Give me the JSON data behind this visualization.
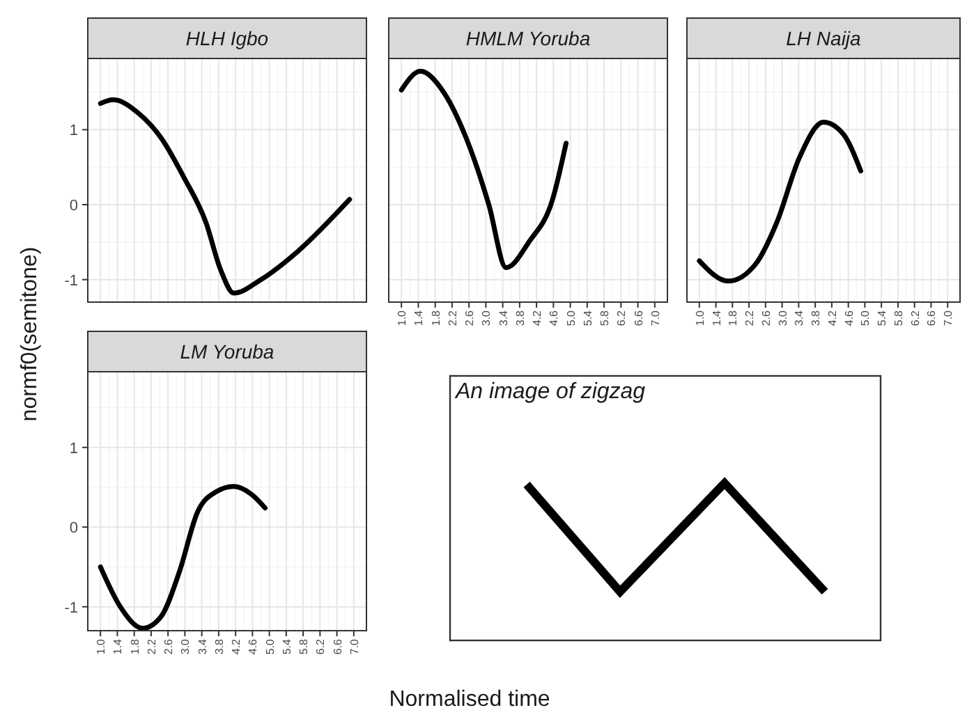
{
  "chart_data": [
    {
      "type": "line",
      "title": "HLH Igbo",
      "x": [
        1.0,
        1.3,
        1.9,
        2.45,
        2.97,
        3.5,
        3.84,
        4.16,
        4.8,
        5.68,
        6.9
      ],
      "series": [
        {
          "color": "#000000",
          "values": [
            1.35,
            1.4,
            1.22,
            0.88,
            0.37,
            -0.24,
            -0.86,
            -1.18,
            -1.0,
            -0.62,
            0.07
          ]
        }
      ],
      "xlim": [
        0.7,
        7.3
      ],
      "ylim": [
        -1.3,
        1.95
      ],
      "xticks": [
        1,
        1.4,
        1.8,
        2.2,
        2.6,
        3,
        3.4,
        3.8,
        4.2,
        4.6,
        5,
        5.4,
        5.8,
        6.2,
        6.6,
        7
      ],
      "yticks": [
        -1,
        0,
        1
      ],
      "grid": true,
      "tick_labels": "y"
    },
    {
      "type": "line",
      "title": "HMLM Yoruba",
      "x": [
        1.0,
        1.45,
        2.0,
        2.54,
        3.07,
        3.48,
        4.03,
        4.58,
        4.9
      ],
      "series": [
        {
          "color": "#000000",
          "values": [
            1.53,
            1.78,
            1.5,
            0.88,
            0,
            -0.84,
            -0.49,
            0.07,
            0.82
          ]
        }
      ],
      "xlim": [
        0.7,
        7.3
      ],
      "ylim": [
        -1.3,
        1.95
      ],
      "xticks": [
        {
          "value": 1,
          "label": "1.0"
        },
        1.4,
        1.8,
        2.2,
        2.6,
        {
          "value": 3,
          "label": "3.0"
        },
        3.4,
        3.8,
        4.2,
        4.6,
        {
          "value": 5,
          "label": "5.0"
        },
        5.4,
        5.8,
        6.2,
        6.6,
        {
          "value": 7,
          "label": "7.0"
        }
      ],
      "yticks": [
        -1,
        0,
        1
      ],
      "grid": true,
      "tick_labels": "x"
    },
    {
      "type": "line",
      "title": "LH Naija",
      "x": [
        1.0,
        1.7,
        2.35,
        2.87,
        3.42,
        4.0,
        4.48,
        4.9
      ],
      "series": [
        {
          "color": "#000000",
          "values": [
            -0.75,
            -1.02,
            -0.8,
            -0.24,
            0.63,
            1.1,
            0.94,
            0.45
          ]
        }
      ],
      "xlim": [
        0.7,
        7.3
      ],
      "ylim": [
        -1.3,
        1.95
      ],
      "xticks": [
        {
          "value": 1,
          "label": "1.0"
        },
        1.4,
        1.8,
        2.2,
        2.6,
        {
          "value": 3,
          "label": "3.0"
        },
        3.4,
        3.8,
        4.2,
        4.6,
        {
          "value": 5,
          "label": "5.0"
        },
        5.4,
        5.8,
        6.2,
        6.6,
        {
          "value": 7,
          "label": "7.0"
        }
      ],
      "yticks": [
        -1,
        0,
        1
      ],
      "grid": true,
      "tick_labels": "x"
    },
    {
      "type": "line",
      "title": "LM Yoruba",
      "xlabel": "Normalised time",
      "ylabel": "normf0(semitone)",
      "x": [
        1.0,
        1.47,
        2.0,
        2.44,
        2.87,
        3.3,
        3.73,
        4.16,
        4.58,
        4.9
      ],
      "series": [
        {
          "color": "#000000",
          "values": [
            -0.5,
            -1.0,
            -1.27,
            -1.12,
            -0.56,
            0.19,
            0.44,
            0.51,
            0.41,
            0.24
          ]
        }
      ],
      "xlim": [
        0.7,
        7.3
      ],
      "ylim": [
        -1.3,
        1.95
      ],
      "xticks": [
        {
          "value": 1,
          "label": "1.0"
        },
        1.4,
        1.8,
        2.2,
        2.6,
        {
          "value": 3,
          "label": "3.0"
        },
        3.4,
        3.8,
        4.2,
        4.6,
        {
          "value": 5,
          "label": "5.0"
        },
        5.4,
        5.8,
        6.2,
        6.6,
        {
          "value": 7,
          "label": "7.0"
        }
      ],
      "yticks": [
        -1,
        0,
        1
      ],
      "grid": true
    },
    {
      "type": "other",
      "title": "An image of zigzag"
    }
  ]
}
